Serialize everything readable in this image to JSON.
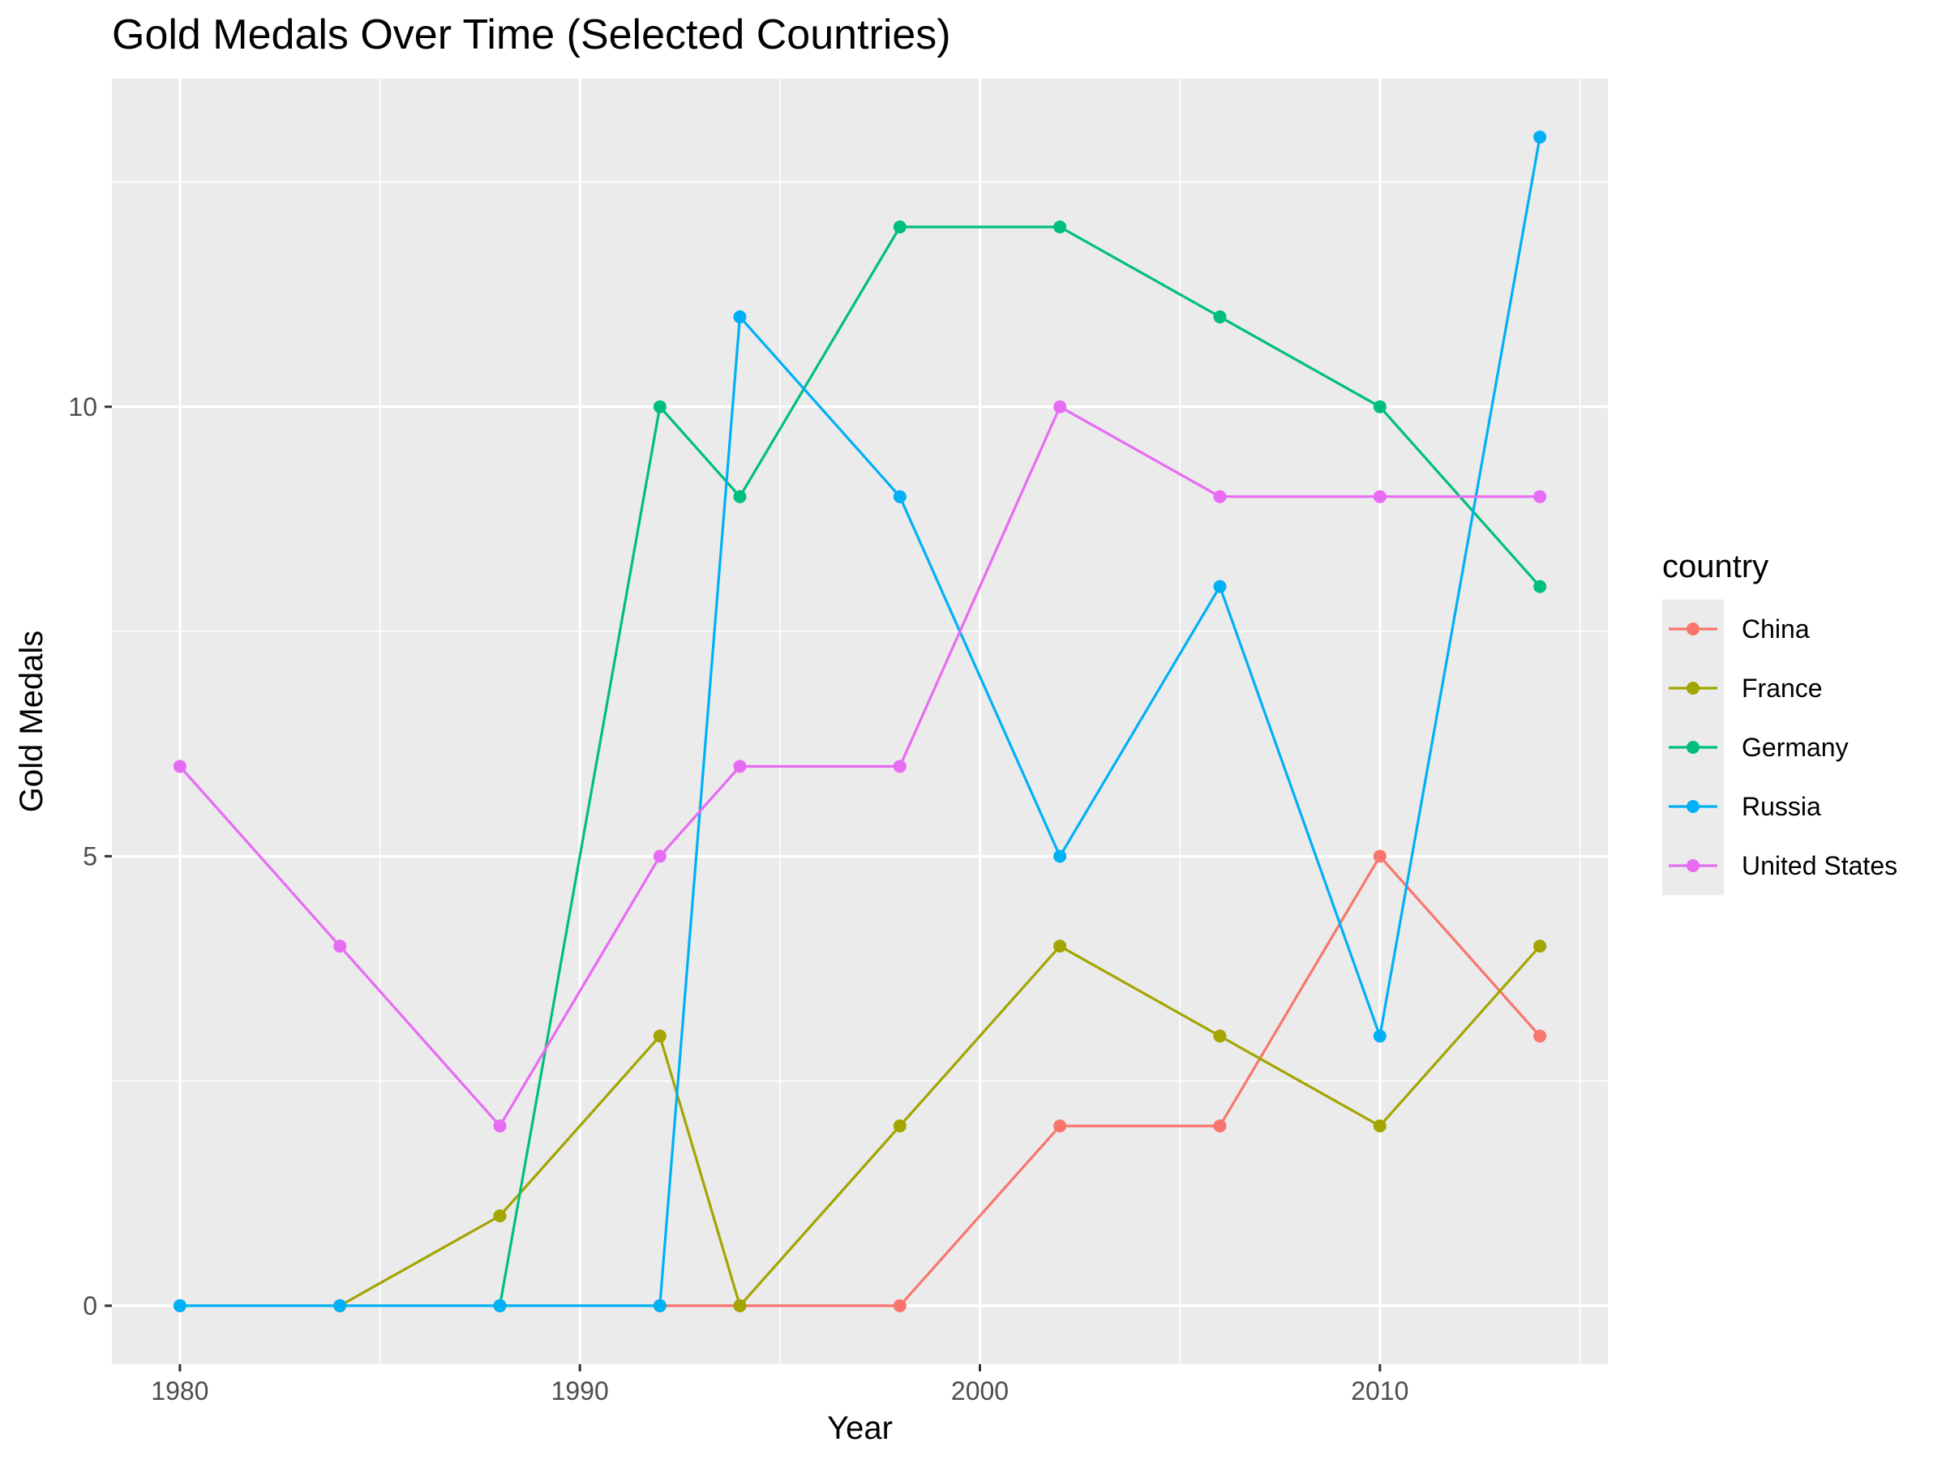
{
  "chart_data": {
    "type": "line",
    "title": "Gold Medals Over Time (Selected Countries)",
    "xlabel": "Year",
    "ylabel": "Gold Medals",
    "xlim": [
      1978.3,
      2015.7
    ],
    "ylim": [
      -0.65,
      13.65
    ],
    "x_ticks": [
      1980,
      1990,
      2000,
      2010
    ],
    "y_ticks": [
      0,
      5,
      10
    ],
    "grid": true,
    "legend": {
      "title": "country",
      "position": "right"
    },
    "series": [
      {
        "name": "China",
        "color": "#F8766D",
        "points": [
          [
            1992,
            0
          ],
          [
            1994,
            0
          ],
          [
            1998,
            0
          ],
          [
            2002,
            2
          ],
          [
            2006,
            2
          ],
          [
            2010,
            5
          ],
          [
            2014,
            3
          ]
        ]
      },
      {
        "name": "France",
        "color": "#A3A500",
        "points": [
          [
            1984,
            0
          ],
          [
            1988,
            1
          ],
          [
            1992,
            3
          ],
          [
            1994,
            0
          ],
          [
            1998,
            2
          ],
          [
            2002,
            4
          ],
          [
            2006,
            3
          ],
          [
            2010,
            2
          ],
          [
            2014,
            4
          ]
        ]
      },
      {
        "name": "Germany",
        "color": "#00BF7D",
        "points": [
          [
            1988,
            0
          ],
          [
            1992,
            10
          ],
          [
            1994,
            9
          ],
          [
            1998,
            12
          ],
          [
            2002,
            12
          ],
          [
            2006,
            11
          ],
          [
            2010,
            10
          ],
          [
            2014,
            8
          ]
        ]
      },
      {
        "name": "Russia",
        "color": "#00B0F6",
        "points": [
          [
            1980,
            0
          ],
          [
            1984,
            0
          ],
          [
            1988,
            0
          ],
          [
            1992,
            0
          ],
          [
            1994,
            11
          ],
          [
            1998,
            9
          ],
          [
            2002,
            5
          ],
          [
            2006,
            8
          ],
          [
            2010,
            3
          ],
          [
            2014,
            13
          ]
        ]
      },
      {
        "name": "United States",
        "color": "#E76BF3",
        "points": [
          [
            1980,
            6
          ],
          [
            1984,
            4
          ],
          [
            1988,
            2
          ],
          [
            1992,
            5
          ],
          [
            1994,
            6
          ],
          [
            1998,
            6
          ],
          [
            2002,
            10
          ],
          [
            2006,
            9
          ],
          [
            2010,
            9
          ],
          [
            2014,
            9
          ]
        ]
      }
    ]
  }
}
